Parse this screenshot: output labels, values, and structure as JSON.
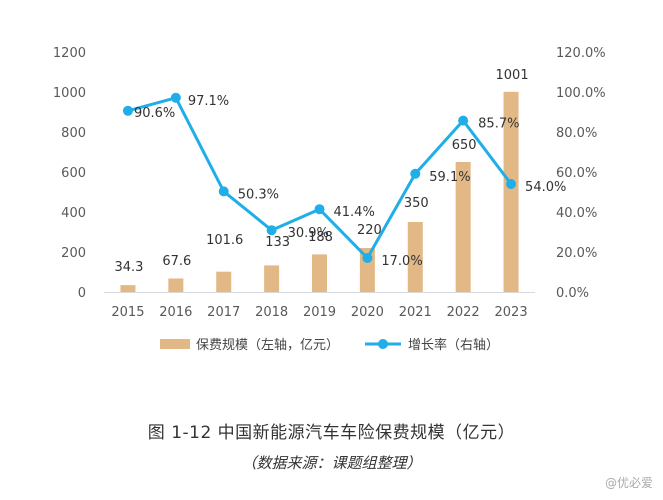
{
  "chart_data": {
    "type": "bar+line",
    "categories": [
      "2015",
      "2016",
      "2017",
      "2018",
      "2019",
      "2020",
      "2021",
      "2022",
      "2023"
    ],
    "series": [
      {
        "name": "保费规模（左轴，亿元）",
        "type": "bar",
        "axis": "left",
        "values": [
          34.3,
          67.6,
          101.6,
          133,
          188,
          220,
          350,
          650,
          1001
        ],
        "labels": [
          "34.3",
          "67.6",
          "101.6",
          "133",
          "188",
          "220",
          "350",
          "650",
          "1001"
        ],
        "color": "#E2B887"
      },
      {
        "name": "增长率（右轴）",
        "type": "line",
        "axis": "right",
        "values": [
          90.6,
          97.1,
          50.3,
          30.9,
          41.4,
          17.0,
          59.1,
          85.7,
          54.0
        ],
        "labels": [
          "90.6%",
          "97.1%",
          "50.3%",
          "30.9%",
          "41.4%",
          "17.0%",
          "59.1%",
          "85.7%",
          "54.0%"
        ],
        "color": "#1FAEE8"
      }
    ],
    "y_left": {
      "min": 0,
      "max": 1200,
      "ticks": [
        "0",
        "200",
        "400",
        "600",
        "800",
        "1000",
        "1200"
      ]
    },
    "y_right": {
      "min": 0,
      "max": 120,
      "ticks": [
        "0.0%",
        "20.0%",
        "40.0%",
        "60.0%",
        "80.0%",
        "100.0%",
        "120.0%"
      ]
    },
    "legend": [
      "保费规模（左轴，亿元）",
      "增长率（右轴）"
    ],
    "grid": false
  },
  "caption": {
    "title": "图 1-12 中国新能源汽车车险保费规模（亿元）",
    "source": "（数据来源：课题组整理）"
  },
  "watermark": "@优必爱"
}
